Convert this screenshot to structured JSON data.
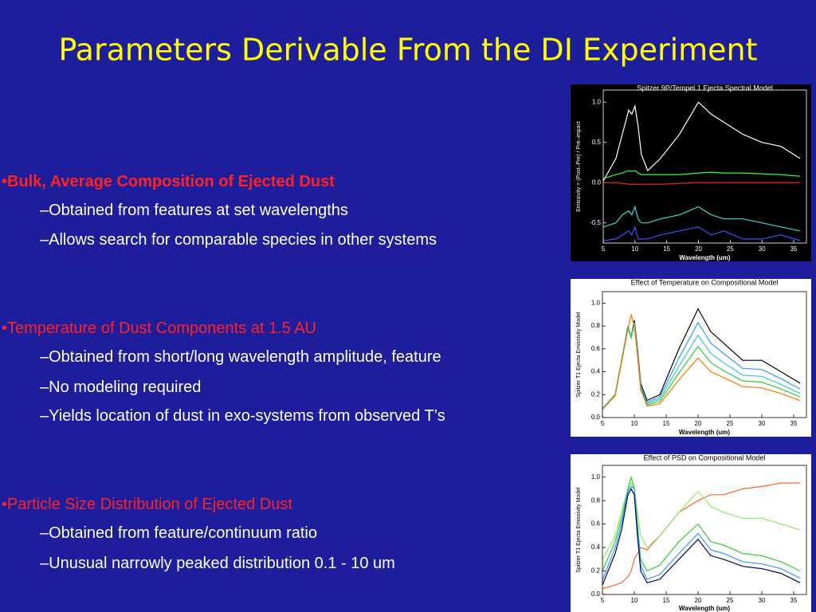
{
  "slide": {
    "title": "Parameters Derivable From the DI Experiment",
    "sections": [
      {
        "heading": "•Bulk, Average Composition of Ejected Dust",
        "items": [
          "–Obtained from features at set wavelengths",
          "–Allows search for comparable species in other systems"
        ]
      },
      {
        "heading": "•Temperature of Dust Components at 1.5 AU",
        "items": [
          "–Obtained from short/long wavelength amplitude, feature",
          "–No modeling required",
          "–Yields location of dust in exo-systems from observed T’s"
        ]
      },
      {
        "heading": "•Particle Size Distribution of Ejected Dust",
        "items": [
          "–Obtained from feature/continuum ratio",
          "–Unusual narrowly peaked distribution 0.1 - 10 um"
        ]
      }
    ]
  },
  "chart_data": [
    {
      "type": "line",
      "title": "Spitzer 9P/Tempel 1 Ejecta Spectral Model",
      "xlabel": "Wavelength (um)",
      "ylabel": "Emissivity = (Post–Pre) / Pre–impact",
      "x": [
        5,
        7,
        8,
        9,
        9.5,
        10,
        10.5,
        11,
        12,
        14,
        17,
        20,
        22,
        24,
        27,
        30,
        33,
        36
      ],
      "xlim": [
        5,
        37
      ],
      "xticks": [
        5,
        10,
        15,
        20,
        25,
        30,
        35
      ],
      "ylim": [
        -0.75,
        1.15
      ],
      "yticks": [
        -0.5,
        {
          "value": 0,
          "label": "0.0"
        },
        0.5,
        {
          "value": 1,
          "label": "1.0"
        }
      ],
      "series": [
        {
          "color": "#ffffff",
          "values": [
            0.02,
            0.3,
            0.6,
            0.9,
            0.85,
            0.95,
            0.7,
            0.35,
            0.15,
            0.3,
            0.6,
            1.0,
            0.85,
            0.75,
            0.6,
            0.5,
            0.45,
            0.3
          ]
        },
        {
          "color": "#33ff33",
          "values": [
            0.05,
            0.1,
            0.12,
            0.15,
            0.14,
            0.15,
            0.12,
            0.1,
            0.1,
            0.1,
            0.1,
            0.12,
            0.13,
            0.12,
            0.12,
            0.11,
            0.1,
            0.08
          ]
        },
        {
          "color": "#ff3300",
          "values": [
            0.0,
            0.0,
            -0.01,
            -0.02,
            -0.02,
            -0.02,
            -0.02,
            -0.02,
            -0.02,
            -0.02,
            -0.01,
            0.0,
            0.0,
            0.0,
            0.0,
            0.0,
            0.0,
            0.0
          ]
        },
        {
          "color": "#33ddcc",
          "values": [
            -0.55,
            -0.5,
            -0.4,
            -0.35,
            -0.4,
            -0.3,
            -0.45,
            -0.5,
            -0.5,
            -0.45,
            -0.4,
            -0.3,
            -0.4,
            -0.45,
            -0.45,
            -0.5,
            -0.55,
            -0.6
          ]
        },
        {
          "color": "#3355ff",
          "values": [
            -0.72,
            -0.7,
            -0.65,
            -0.6,
            -0.65,
            -0.55,
            -0.7,
            -0.7,
            -0.7,
            -0.65,
            -0.6,
            -0.55,
            -0.65,
            -0.6,
            -0.7,
            -0.7,
            -0.65,
            -0.72
          ]
        }
      ]
    },
    {
      "type": "line",
      "title": "Effect of Temperature on Compositional Model",
      "xlabel": "Wavelength (um)",
      "ylabel": "Spitzer T1 Ejecta Emissivity Model",
      "x": [
        5,
        7,
        8,
        9,
        9.5,
        10,
        10.5,
        11,
        12,
        14,
        17,
        20,
        22,
        24,
        27,
        30,
        33,
        36
      ],
      "xlim": [
        5,
        37
      ],
      "xticks": [
        5,
        10,
        15,
        20,
        25,
        30,
        35
      ],
      "ylim": [
        0,
        1.1
      ],
      "yticks": [
        {
          "value": 0,
          "label": "0.0"
        },
        0.2,
        0.4,
        0.6,
        0.8,
        {
          "value": 1,
          "label": "1.0"
        }
      ],
      "series": [
        {
          "color": "#000000",
          "values": [
            0.08,
            0.2,
            0.5,
            0.8,
            0.7,
            0.85,
            0.6,
            0.3,
            0.15,
            0.2,
            0.6,
            0.95,
            0.75,
            0.65,
            0.5,
            0.5,
            0.4,
            0.3
          ]
        },
        {
          "color": "#3399ff",
          "values": [
            0.08,
            0.2,
            0.5,
            0.8,
            0.7,
            0.83,
            0.58,
            0.28,
            0.13,
            0.18,
            0.52,
            0.83,
            0.65,
            0.56,
            0.43,
            0.42,
            0.34,
            0.25
          ]
        },
        {
          "color": "#33cccc",
          "values": [
            0.08,
            0.2,
            0.5,
            0.79,
            0.7,
            0.82,
            0.56,
            0.26,
            0.12,
            0.16,
            0.45,
            0.72,
            0.56,
            0.48,
            0.37,
            0.36,
            0.29,
            0.21
          ]
        },
        {
          "color": "#33cc33",
          "values": [
            0.07,
            0.2,
            0.49,
            0.78,
            0.7,
            0.81,
            0.55,
            0.25,
            0.11,
            0.14,
            0.39,
            0.62,
            0.48,
            0.41,
            0.32,
            0.31,
            0.25,
            0.18
          ]
        },
        {
          "color": "#ff7700",
          "values": [
            0.07,
            0.19,
            0.48,
            0.77,
            0.9,
            0.8,
            0.54,
            0.24,
            0.1,
            0.12,
            0.33,
            0.52,
            0.4,
            0.35,
            0.27,
            0.26,
            0.21,
            0.15
          ]
        }
      ]
    },
    {
      "type": "line",
      "title": "Effect of PSD on Compositional Model",
      "xlabel": "Wavelength (um)",
      "ylabel": "Spitzer T1 Ejecta Emissivity Model",
      "x": [
        5,
        7,
        8,
        9,
        9.5,
        10,
        10.5,
        11,
        12,
        14,
        17,
        20,
        22,
        24,
        27,
        30,
        33,
        36
      ],
      "xlim": [
        5,
        37
      ],
      "xticks": [
        5,
        10,
        15,
        20,
        25,
        30,
        35
      ],
      "ylim": [
        0,
        1.1
      ],
      "yticks": [
        {
          "value": 0,
          "label": "0.0"
        },
        0.2,
        0.4,
        0.6,
        0.8,
        {
          "value": 1,
          "label": "1.0"
        }
      ],
      "series": [
        {
          "color": "#ff6622",
          "values": [
            0.05,
            0.08,
            0.1,
            0.15,
            0.2,
            0.3,
            0.35,
            0.4,
            0.38,
            0.5,
            0.7,
            0.8,
            0.85,
            0.85,
            0.9,
            0.92,
            0.95,
            0.95
          ]
        },
        {
          "color": "#88ee66",
          "values": [
            0.3,
            0.5,
            0.7,
            0.9,
            0.95,
            0.9,
            0.7,
            0.5,
            0.4,
            0.5,
            0.7,
            0.88,
            0.75,
            0.7,
            0.65,
            0.65,
            0.6,
            0.55
          ]
        },
        {
          "color": "#33cc33",
          "values": [
            0.2,
            0.45,
            0.65,
            0.9,
            1.0,
            0.9,
            0.6,
            0.3,
            0.2,
            0.25,
            0.45,
            0.6,
            0.45,
            0.42,
            0.35,
            0.33,
            0.28,
            0.2
          ]
        },
        {
          "color": "#3399ff",
          "values": [
            0.12,
            0.4,
            0.6,
            0.88,
            0.92,
            0.9,
            0.55,
            0.25,
            0.13,
            0.17,
            0.35,
            0.52,
            0.38,
            0.35,
            0.28,
            0.26,
            0.22,
            0.14
          ]
        },
        {
          "color": "#000066",
          "values": [
            0.08,
            0.35,
            0.55,
            0.85,
            0.9,
            0.85,
            0.5,
            0.2,
            0.1,
            0.13,
            0.3,
            0.47,
            0.33,
            0.3,
            0.24,
            0.22,
            0.18,
            0.1
          ]
        }
      ]
    }
  ]
}
